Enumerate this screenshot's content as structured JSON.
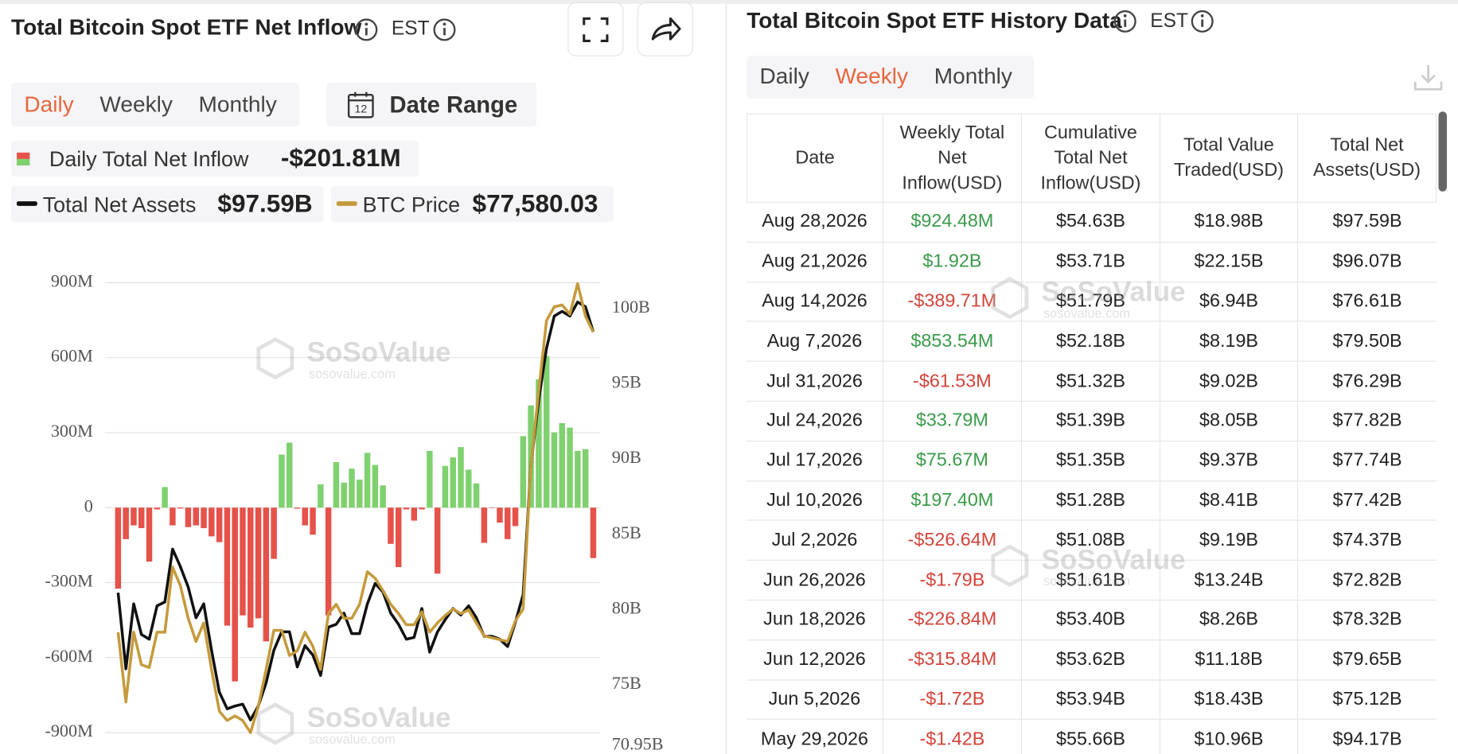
{
  "left_panel": {
    "title": "Total Bitcoin Spot ETF Net Inflow",
    "timezone": "EST",
    "tabs": [
      "Daily",
      "Weekly",
      "Monthly"
    ],
    "active_tab": 0,
    "date_range": "Date Range",
    "calendar_day": "12"
  },
  "chart_data": {
    "type": "bar",
    "watermark": "SoSoValue",
    "watermark_url": "sosovalue.com",
    "series": [
      {
        "name": "Daily Total Net Inflow",
        "type": "bar",
        "headline": "-$201.81M",
        "positive_color": "#7fd16f",
        "negative_color": "#e5524a",
        "values": [
          -324,
          -126,
          -71,
          -82,
          -216,
          -7,
          82,
          -71,
          -4,
          -78,
          -71,
          -82,
          -115,
          -138,
          -472,
          -695,
          -431,
          -480,
          -443,
          -535,
          -205,
          212,
          260,
          -4,
          -71,
          -108,
          93,
          -431,
          182,
          100,
          156,
          112,
          219,
          171,
          89,
          -145,
          -238,
          -7,
          -52,
          -7,
          227,
          -264,
          167,
          201,
          242,
          152,
          97,
          -141,
          -2,
          -60,
          -126,
          -74,
          286,
          409,
          513,
          606,
          301,
          338,
          320,
          227,
          234,
          -201.81
        ]
      },
      {
        "name": "Total Net Assets",
        "type": "line",
        "axis": "y2",
        "headline": "$97.59B",
        "color": "#111111",
        "values": [
          80.25,
          75.19,
          79.51,
          77.47,
          77.16,
          79.38,
          79.63,
          83.15,
          81.98,
          80.62,
          78.58,
          79.51,
          76.42,
          73.64,
          72.53,
          72.72,
          72.84,
          71.79,
          72.72,
          74.26,
          76.42,
          77.65,
          77.65,
          75.31,
          76.73,
          76.11,
          74.75,
          77.96,
          78.15,
          78.89,
          77.53,
          77.53,
          79.51,
          80.86,
          80.31,
          78.89,
          78.15,
          77.16,
          77.28,
          79.2,
          76.3,
          77.65,
          78.46,
          79.2,
          78.77,
          79.38,
          78.58,
          77.35,
          77.35,
          77.16,
          76.67,
          78.27,
          80.12,
          88.77,
          93.09,
          96.48,
          98.64,
          98.95,
          98.64,
          99.57,
          99.26,
          97.59
        ]
      },
      {
        "name": "BTC Price",
        "type": "line",
        "axis": "y3",
        "headline": "$77,580.03",
        "color": "#c59a3c",
        "values": [
          62909,
          59500,
          62909,
          61318,
          61182,
          62909,
          62909,
          66091,
          65182,
          63591,
          62455,
          63364,
          61091,
          59045,
          58591,
          58818,
          58591,
          58000,
          59273,
          61091,
          63000,
          63000,
          61773,
          62000,
          62909,
          62227,
          61091,
          63818,
          64273,
          63591,
          63591,
          64273,
          65864,
          65545,
          64955,
          64273,
          63818,
          63273,
          63273,
          63909,
          62909,
          63364,
          63727,
          64045,
          63818,
          64000,
          63364,
          62727,
          62636,
          62545,
          62455,
          63455,
          64045,
          71091,
          74727,
          78136,
          78818,
          78909,
          78455,
          79955,
          78364,
          77580.03
        ]
      }
    ],
    "ylim": [
      -900,
      900
    ],
    "yticks": [
      {
        "value": 900,
        "label": "900M"
      },
      {
        "value": 600,
        "label": "600M"
      },
      {
        "value": 300,
        "label": "300M"
      },
      0,
      {
        "value": -300,
        "label": "-300M"
      },
      {
        "value": -600,
        "label": "-600M"
      },
      {
        "value": -900,
        "label": "-900M"
      }
    ],
    "y2lim": [
      70.95,
      100.86
    ],
    "y2ticks": [
      {
        "value": 100,
        "label": "100B"
      },
      {
        "value": 95,
        "label": "95B"
      },
      {
        "value": 90,
        "label": "90B"
      },
      {
        "value": 85,
        "label": "85B"
      },
      {
        "value": 80,
        "label": "80B"
      },
      {
        "value": 75,
        "label": "75B"
      },
      {
        "value": 70.95,
        "label": "70.95B"
      }
    ],
    "y3lim": [
      58000,
      80000
    ],
    "grid": true
  },
  "right_panel": {
    "title": "Total Bitcoin Spot ETF History Data",
    "timezone": "EST",
    "tabs": [
      "Daily",
      "Weekly",
      "Monthly"
    ],
    "active_tab": 1
  },
  "table": {
    "columns": [
      "Date",
      "Weekly Total Net Inflow(USD)",
      "Cumulative Total Net Inflow(USD)",
      "Total Value Traded(USD)",
      "Total Net Assets(USD)"
    ],
    "rows": [
      [
        "Aug 28,2026",
        "$924.48M",
        "$54.63B",
        "$18.98B",
        "$97.59B"
      ],
      [
        "Aug 21,2026",
        "$1.92B",
        "$53.71B",
        "$22.15B",
        "$96.07B"
      ],
      [
        "Aug 14,2026",
        "-$389.71M",
        "$51.79B",
        "$6.94B",
        "$76.61B"
      ],
      [
        "Aug 7,2026",
        "$853.54M",
        "$52.18B",
        "$8.19B",
        "$79.50B"
      ],
      [
        "Jul 31,2026",
        "-$61.53M",
        "$51.32B",
        "$9.02B",
        "$76.29B"
      ],
      [
        "Jul 24,2026",
        "$33.79M",
        "$51.39B",
        "$8.05B",
        "$77.82B"
      ],
      [
        "Jul 17,2026",
        "$75.67M",
        "$51.35B",
        "$9.37B",
        "$77.74B"
      ],
      [
        "Jul 10,2026",
        "$197.40M",
        "$51.28B",
        "$8.41B",
        "$77.42B"
      ],
      [
        "Jul 2,2026",
        "-$526.64M",
        "$51.08B",
        "$9.19B",
        "$74.37B"
      ],
      [
        "Jun 26,2026",
        "-$1.79B",
        "$51.61B",
        "$13.24B",
        "$72.82B"
      ],
      [
        "Jun 18,2026",
        "-$226.84M",
        "$53.40B",
        "$8.26B",
        "$78.32B"
      ],
      [
        "Jun 12,2026",
        "-$315.84M",
        "$53.62B",
        "$11.18B",
        "$79.65B"
      ],
      [
        "Jun 5,2026",
        "-$1.72B",
        "$53.94B",
        "$18.43B",
        "$75.12B"
      ],
      [
        "May 29,2026",
        "-$1.42B",
        "$55.66B",
        "$10.96B",
        "$94.17B"
      ]
    ]
  }
}
